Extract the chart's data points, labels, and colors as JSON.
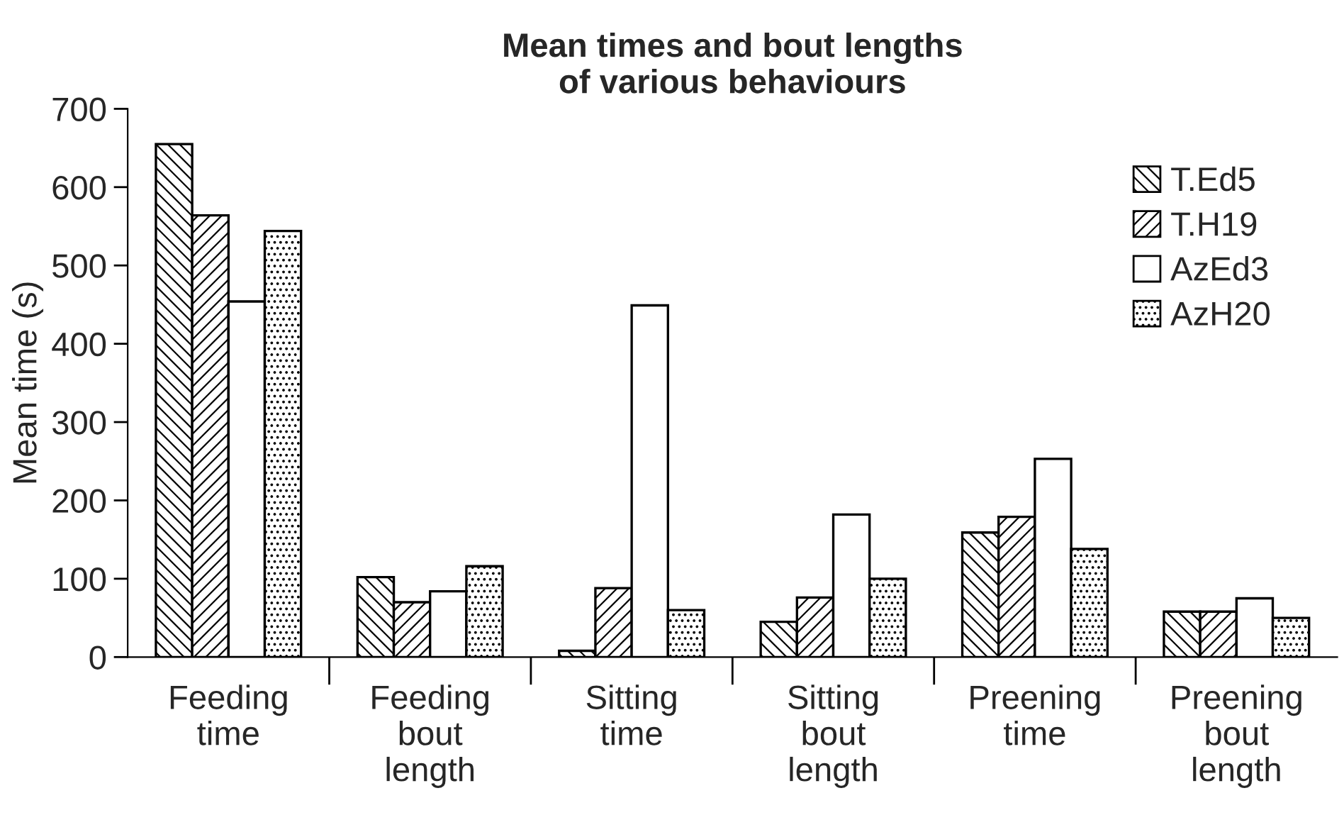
{
  "chart_data": {
    "type": "bar",
    "title": "Mean times and bout lengths\nof various behaviours",
    "ylabel": "Mean time (s)",
    "categories": [
      "Feeding\ntime",
      "Feeding\nbout\nlength",
      "Sitting\ntime",
      "Sitting\nbout\nlength",
      "Preening\ntime",
      "Preening\nbout\nlength"
    ],
    "series": [
      {
        "name": "T.Ed5",
        "color": "#000000",
        "values": [
          655,
          102,
          8,
          45,
          159,
          58
        ]
      },
      {
        "name": "T.H19",
        "color": "#000000",
        "values": [
          564,
          70,
          88,
          76,
          179,
          58
        ]
      },
      {
        "name": "AzEd3",
        "color": "#ffffff",
        "values": [
          454,
          84,
          449,
          182,
          253,
          75
        ]
      },
      {
        "name": "AzH20",
        "color": "#000000",
        "values": [
          544,
          116,
          60,
          100,
          138,
          50
        ]
      }
    ],
    "ylim": [
      0,
      700
    ],
    "yticks": [
      0,
      100,
      200,
      300,
      400,
      500,
      600,
      700
    ],
    "grid": false,
    "legend": "top right"
  }
}
